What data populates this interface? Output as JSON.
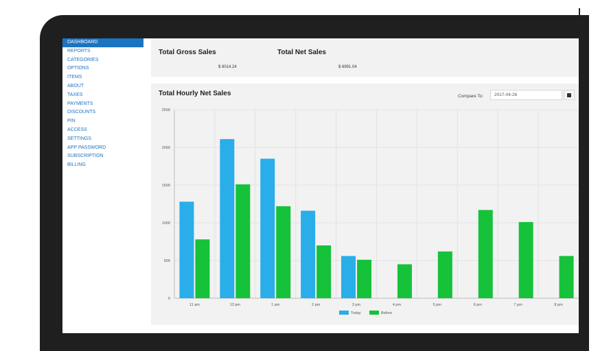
{
  "sidebar": {
    "items": [
      {
        "label": "DASHBOARD",
        "active": true
      },
      {
        "label": "REPORTS"
      },
      {
        "label": "CATEGORIES"
      },
      {
        "label": "OPTIONS"
      },
      {
        "label": "ITEMS"
      },
      {
        "label": "ABOUT"
      },
      {
        "label": "TAXES"
      },
      {
        "label": "PAYMENTS"
      },
      {
        "label": "DISCOUNTS"
      },
      {
        "label": "PIN"
      },
      {
        "label": "ACCESS"
      },
      {
        "label": "SETTINGS"
      },
      {
        "label": "APP PASSWORD"
      },
      {
        "label": "SUBSCRIPTION"
      },
      {
        "label": "BILLING"
      }
    ]
  },
  "stats": {
    "gross_title": "Total Gross Sales",
    "gross_value": "$ 8014.24",
    "net_title": "Total Net Sales",
    "net_value": "$ 6991.04"
  },
  "chart_panel": {
    "title": "Total Hourly Net Sales",
    "compare_label": "Compare To:",
    "compare_value": "2017-04-26",
    "calendar_icon": "calendar-icon"
  },
  "colors": {
    "today": "#29aee9",
    "before": "#15c23a",
    "active_nav": "#1b74c1",
    "nav_text": "#1e73be"
  },
  "chart_data": {
    "type": "bar",
    "title": "Total Hourly Net Sales",
    "categories": [
      "11 am",
      "12 pm",
      "1 pm",
      "2 pm",
      "3 pm",
      "4 pm",
      "5 pm",
      "6 pm",
      "7 pm",
      "8 pm"
    ],
    "series": [
      {
        "name": "Today",
        "values": [
          1280,
          2110,
          1850,
          1160,
          560,
          0,
          0,
          0,
          0,
          0
        ]
      },
      {
        "name": "Before",
        "values": [
          780,
          1510,
          1220,
          700,
          510,
          450,
          620,
          1170,
          1010,
          560
        ]
      }
    ],
    "ylim": [
      0,
      2500
    ],
    "yticks": [
      "0",
      "500",
      "1000",
      "1500",
      "2000",
      "2500"
    ],
    "legend": "bottom",
    "grid": true
  }
}
